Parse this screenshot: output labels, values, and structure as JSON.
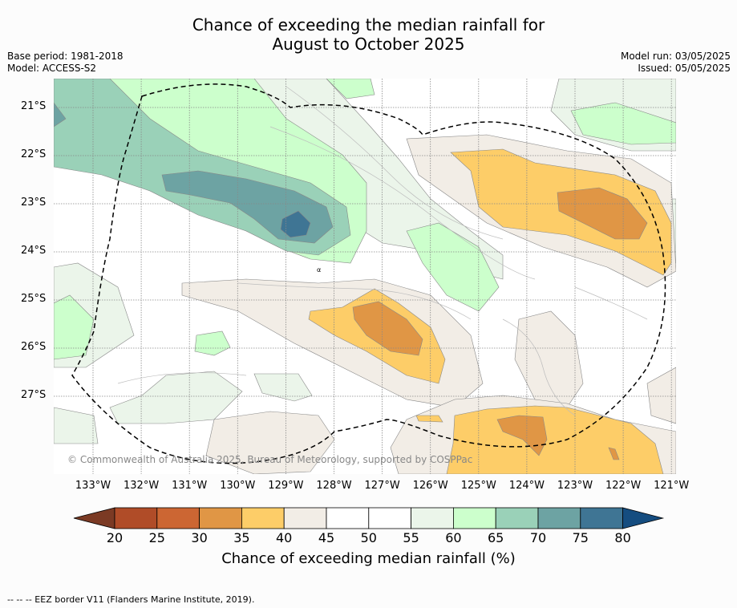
{
  "title_line1": "Chance of exceeding the median rainfall for",
  "title_line2": "August to October 2025",
  "base_period": "Base period: 1981-2018",
  "model": "Model: ACCESS-S2",
  "model_run": "Model run: 03/05/2025",
  "issued": "Issued: 05/05/2025",
  "copyright": "© Commonwealth of Australia 2025, Bureau of Meteorology, supported by COSPPac",
  "footer": "--  --  -- EEZ border V11 (Flanders Marine Institute, 2019).",
  "colorbar_title": "Chance of exceeding median rainfall (%)",
  "x_ticks": [
    "133°W",
    "132°W",
    "131°W",
    "130°W",
    "129°W",
    "128°W",
    "127°W",
    "126°W",
    "125°W",
    "124°W",
    "123°W",
    "122°W",
    "121°W"
  ],
  "y_ticks": [
    "21°S",
    "22°S",
    "23°S",
    "24°S",
    "25°S",
    "26°S",
    "27°S"
  ],
  "colorbar": {
    "labels": [
      "20",
      "25",
      "30",
      "35",
      "40",
      "45",
      "50",
      "55",
      "60",
      "65",
      "70",
      "75",
      "80"
    ],
    "colors": [
      "#7b3a24",
      "#b04c28",
      "#cc6633",
      "#e09645",
      "#fdcd68",
      "#f2ede6",
      "#ffffff",
      "#ffffff",
      "#ebf5ea",
      "#ccffcc",
      "#9ad1b8",
      "#6da3a3",
      "#3f7594",
      "#154d80"
    ]
  },
  "map_colors": {
    "c35": "#e09645",
    "c40": "#fdcd68",
    "c45": "#f2ede6",
    "c55": "#ebf5ea",
    "c60": "#ccffcc",
    "c65": "#9ad1b8",
    "c70": "#6da3a3",
    "c75": "#3f7594"
  }
}
